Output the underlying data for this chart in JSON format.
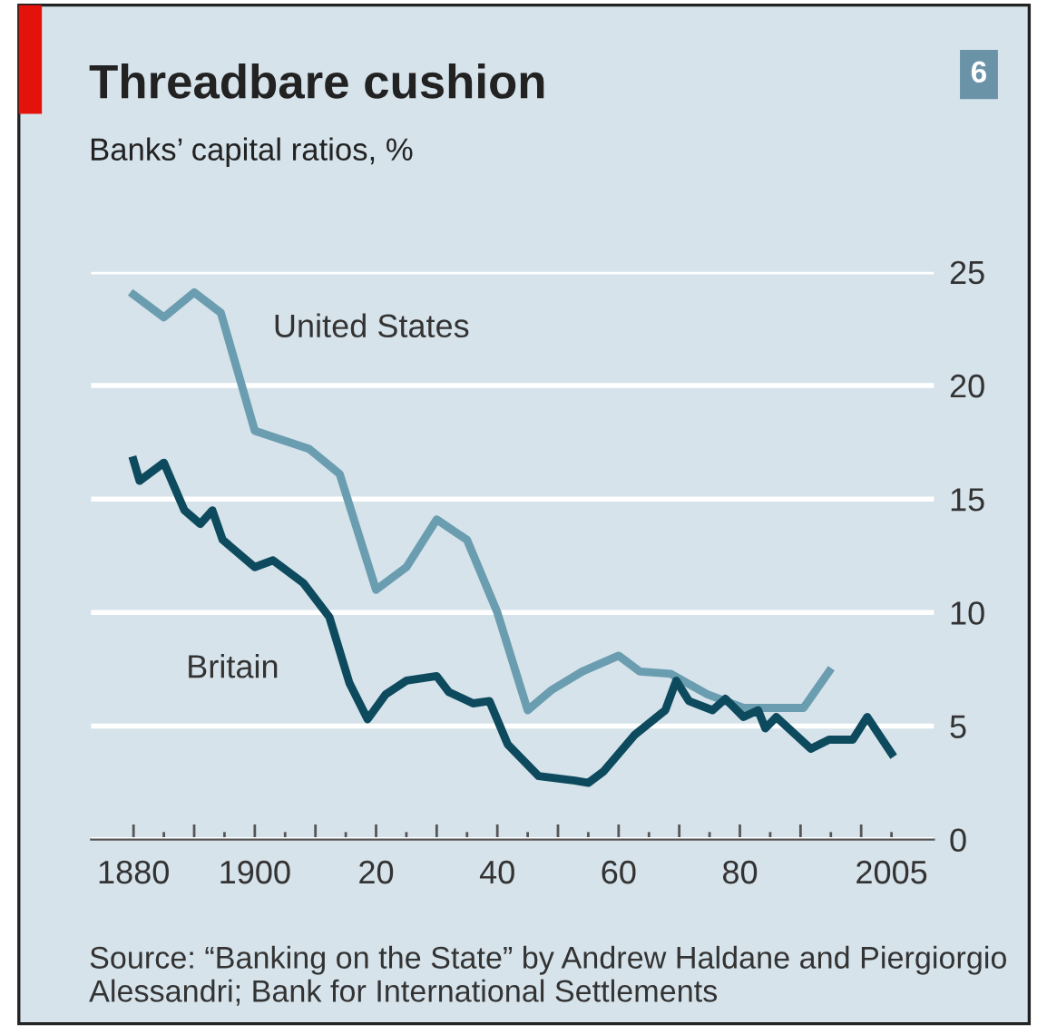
{
  "chart_data": {
    "type": "line",
    "title": "Threadbare cushion",
    "subtitle": "Banks’ capital ratios, %",
    "annotations": [
      "6",
      "Source: “Banking on the State” by Andrew Haldane and Piergiorgio Alessandri; Bank for International Settlements"
    ],
    "series": [
      {
        "name": "United States",
        "color": "#6b9db0",
        "x": [
          1880,
          1885,
          1890,
          1894.4,
          1900,
          1909,
          1914,
          1920,
          1925,
          1930,
          1935,
          1940,
          1945,
          1949,
          1954,
          1960,
          1963.5,
          1968.6,
          1974.6,
          1980.6,
          1990.5,
          1994.7
        ],
        "values": [
          24,
          23,
          24.1,
          23.2,
          18,
          17.2,
          16.1,
          11,
          12,
          14.1,
          13.2,
          10,
          5.7,
          6.6,
          7.4,
          8.1,
          7.4,
          7.3,
          6.4,
          5.8,
          5.8,
          7.4
        ]
      },
      {
        "name": "Britain",
        "color": "#0d4a5e",
        "x": [
          1880,
          1881,
          1885,
          1888.4,
          1891,
          1893,
          1894.7,
          1900,
          1903,
          1908,
          1912.3,
          1915.6,
          1918.6,
          1921.6,
          1925,
          1930,
          1932,
          1936,
          1938.7,
          1941.7,
          1946.8,
          1952.8,
          1955,
          1957.5,
          1962.6,
          1967.7,
          1969.5,
          1971.6,
          1975.5,
          1977.6,
          1980.6,
          1983,
          1984.2,
          1986,
          1991.7,
          1994.7,
          1998.6,
          2001,
          2005
        ],
        "values": [
          16.7,
          15.8,
          16.6,
          14.5,
          13.9,
          14.5,
          13.2,
          12,
          12.3,
          11.3,
          9.8,
          6.9,
          5.3,
          6.4,
          7,
          7.2,
          6.5,
          6,
          6.1,
          4.2,
          2.8,
          2.6,
          2.5,
          3,
          4.6,
          5.7,
          7,
          6.1,
          5.7,
          6.2,
          5.4,
          5.7,
          4.9,
          5.4,
          4,
          4.4,
          4.4,
          5.4,
          3.8
        ]
      }
    ],
    "xlim": [
      1873,
      2012
    ],
    "xticks": [
      1880,
      {
        "value": 1885,
        "label": null
      },
      {
        "value": 1890,
        "label": null
      },
      {
        "value": 1895,
        "label": null
      },
      1900,
      {
        "value": 1905,
        "label": null
      },
      {
        "value": 1910,
        "label": null
      },
      {
        "value": 1915,
        "label": null
      },
      {
        "value": 1920,
        "label": "20"
      },
      {
        "value": 1925,
        "label": null
      },
      {
        "value": 1930,
        "label": null
      },
      {
        "value": 1935,
        "label": null
      },
      {
        "value": 1940,
        "label": "40"
      },
      {
        "value": 1945,
        "label": null
      },
      {
        "value": 1950,
        "label": null
      },
      {
        "value": 1955,
        "label": null
      },
      {
        "value": 1960,
        "label": "60"
      },
      {
        "value": 1965,
        "label": null
      },
      {
        "value": 1970,
        "label": null
      },
      {
        "value": 1975,
        "label": null
      },
      {
        "value": 1980,
        "label": "80"
      },
      {
        "value": 1985,
        "label": null
      },
      {
        "value": 1990,
        "label": null
      },
      {
        "value": 1995,
        "label": null
      },
      {
        "value": 2000,
        "label": null
      },
      2005
    ],
    "ylim": [
      0,
      25
    ],
    "yticks": [
      0,
      5,
      10,
      15,
      20,
      25
    ],
    "grid": "y",
    "line_style": "solid",
    "legend": false
  }
}
